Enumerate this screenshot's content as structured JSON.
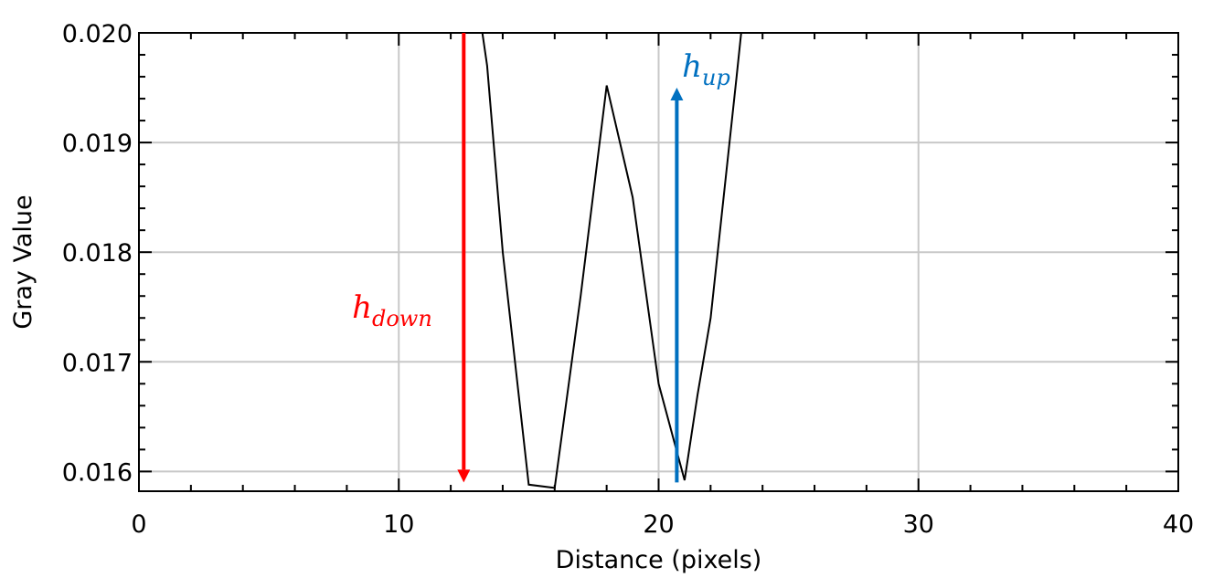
{
  "chart_data": {
    "type": "line",
    "title": "",
    "xlabel": "Distance (pixels)",
    "ylabel": "Gray Value",
    "xlim": [
      0,
      40
    ],
    "ylim": [
      0.01582,
      0.02
    ],
    "x_ticks": [
      0,
      10,
      20,
      30,
      40
    ],
    "y_ticks": [
      0.016,
      0.017,
      0.018,
      0.019,
      0.02
    ],
    "x_tick_labels": [
      "0",
      "10",
      "20",
      "30",
      "40"
    ],
    "y_tick_labels": [
      "0.016",
      "0.017",
      "0.018",
      "0.019",
      "0.020"
    ],
    "grid": true,
    "series": [
      {
        "x": [
          12.3,
          13.4,
          14.0,
          15.0,
          16.0,
          17.0,
          18.0,
          19.0,
          20.0,
          21.0,
          21.5,
          22.0,
          23.0,
          23.4
        ],
        "y": [
          0.0215,
          0.0197,
          0.018,
          0.01588,
          0.01585,
          0.0176,
          0.01952,
          0.0185,
          0.0168,
          0.01592,
          0.0167,
          0.0174,
          0.0196,
          0.0205
        ],
        "color": "#000000"
      }
    ],
    "annotations": [
      {
        "base": "h",
        "subscript": "down",
        "color": "#ff0000",
        "arrow_direction": "down",
        "arrow_x": 12.5,
        "arrow_y_range": [
          0.02,
          0.0159
        ],
        "label_x": 8.2,
        "label_y": 0.0174
      },
      {
        "base": "h",
        "subscript": "up",
        "color": "#0070c0",
        "arrow_direction": "up",
        "arrow_x": 20.7,
        "arrow_y_range": [
          0.0159,
          0.0195
        ],
        "label_x": 20.9,
        "label_y": 0.0196
      }
    ]
  }
}
